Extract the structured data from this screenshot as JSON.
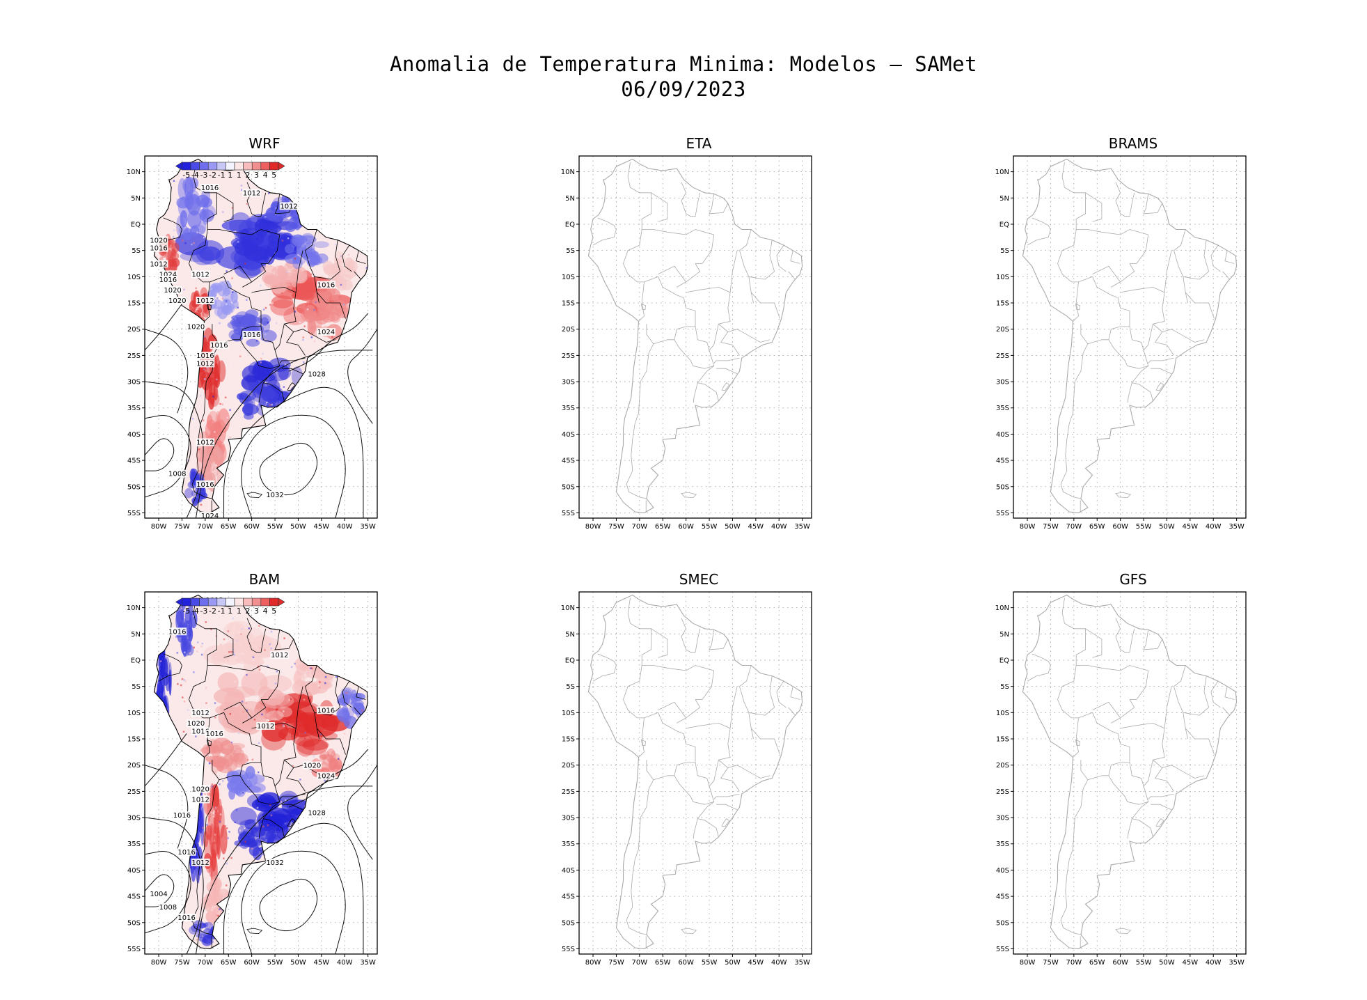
{
  "title": {
    "line1": "Anomalia de Temperatura Minima: Modelos — SAMet",
    "line2": "06/09/2023"
  },
  "lat_ticks": [
    "10N",
    "5N",
    "EQ",
    "5S",
    "10S",
    "15S",
    "20S",
    "25S",
    "30S",
    "35S",
    "40S",
    "45S",
    "50S",
    "55S"
  ],
  "lon_ticks": [
    "80W",
    "75W",
    "70W",
    "65W",
    "60W",
    "55W",
    "50W",
    "45W",
    "40W",
    "35W"
  ],
  "colorbar": {
    "labels": [
      "-5",
      "-4",
      "-3",
      "-2",
      "-1",
      "1",
      "1",
      "2",
      "3",
      "4",
      "5"
    ],
    "colors": [
      "#2222dd",
      "#4a4ae6",
      "#6f6fee",
      "#9a9af4",
      "#c8c8f8",
      "#f4f4ff",
      "#fde6e6",
      "#f8bcbc",
      "#f29090",
      "#ec6060",
      "#e02a2a"
    ]
  },
  "colors": {
    "warm": "#e8383a",
    "cold": "#3a3ae2",
    "map_lines_filled": "#000000",
    "map_lines_empty": "#aaaaaa",
    "grid": "#999999"
  },
  "panels": [
    {
      "id": "wrf",
      "name": "WRF",
      "has_data": true,
      "isobars": [
        "1016",
        "1012",
        "1012",
        "1012",
        "1020",
        "1016",
        "1012",
        "1024",
        "1016",
        "1020",
        "1012",
        "1016",
        "1020",
        "1012",
        "1020",
        "1016",
        "1016",
        "1024",
        "1016",
        "1012",
        "1028",
        "1012",
        "1008",
        "1016",
        "1032",
        "1024"
      ]
    },
    {
      "id": "eta",
      "name": "ETA",
      "has_data": false,
      "isobars": []
    },
    {
      "id": "brams",
      "name": "BRAMS",
      "has_data": false,
      "isobars": []
    },
    {
      "id": "bam",
      "name": "BAM",
      "has_data": true,
      "isobars": [
        "1012",
        "1016",
        "1012",
        "1012",
        "1020",
        "1016",
        "1016",
        "1012",
        "1016",
        "1020",
        "1024",
        "1020",
        "1012",
        "1016",
        "1028",
        "1016",
        "1012",
        "1032",
        "1004",
        "1008",
        "1016"
      ]
    },
    {
      "id": "smec",
      "name": "SMEC",
      "has_data": false,
      "isobars": []
    },
    {
      "id": "gfs",
      "name": "GFS",
      "has_data": false,
      "isobars": []
    }
  ]
}
